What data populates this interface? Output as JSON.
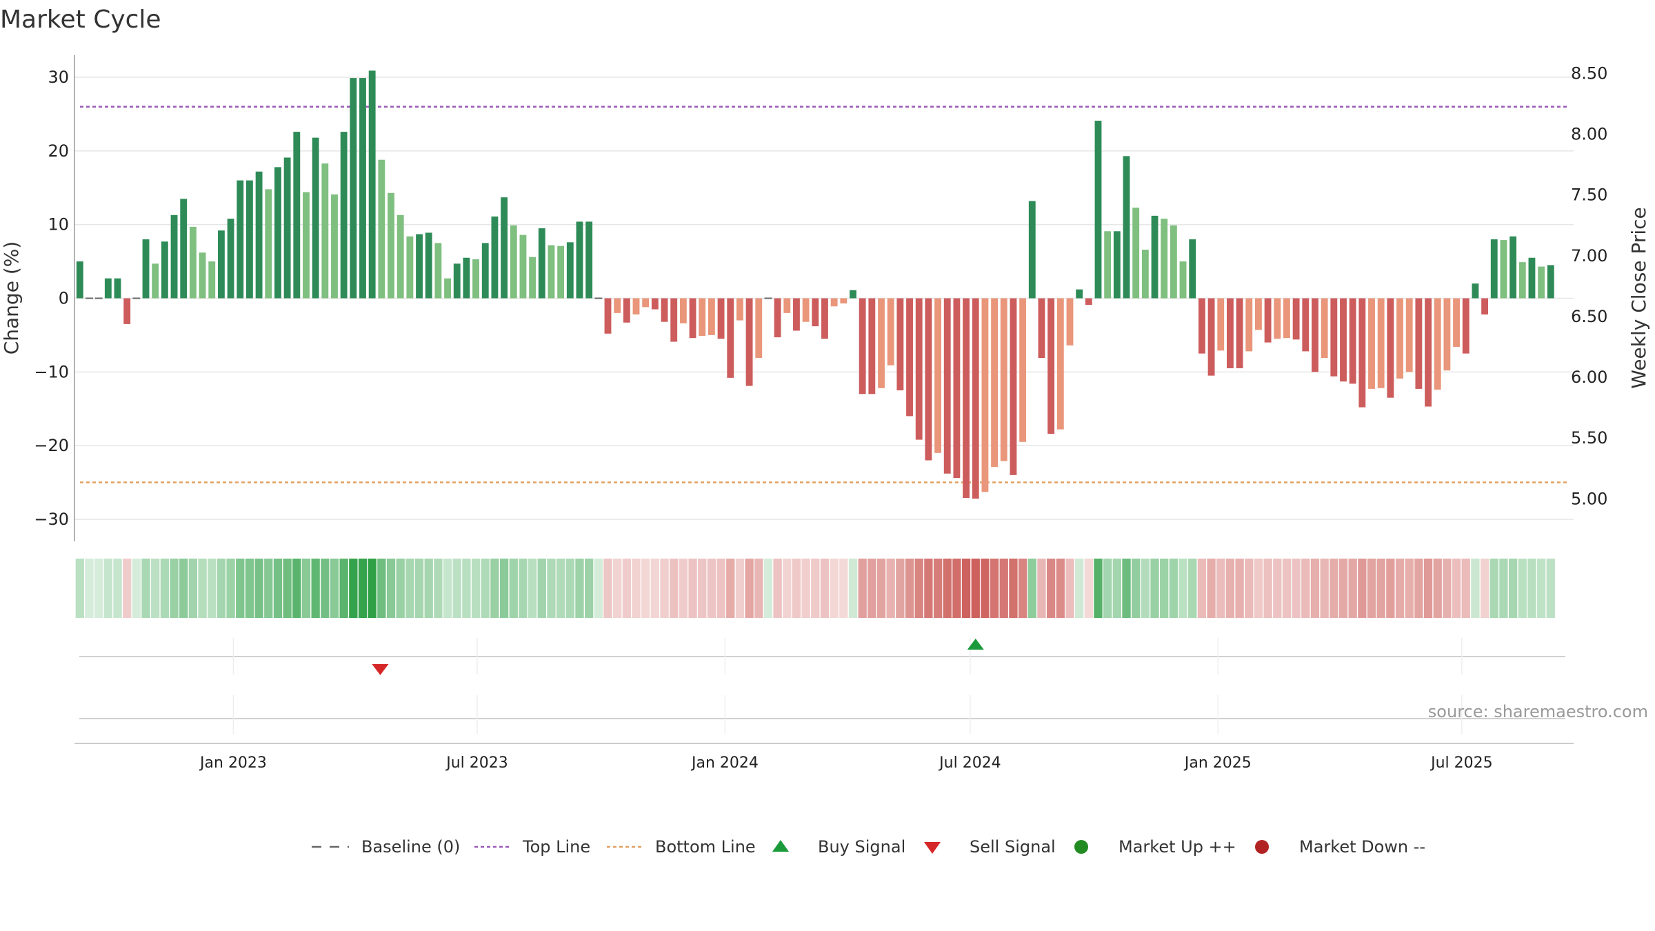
{
  "chart_data": {
    "type": "bar",
    "title": "Market Cycle",
    "ylabel": "Change (%)",
    "y2label": "Weekly Close Price",
    "ylim": [
      -33,
      33
    ],
    "y2lim": [
      4.65,
      8.65
    ],
    "yticks": [
      30,
      20,
      10,
      0,
      -10,
      -20,
      -30
    ],
    "ytick_labels": [
      "30",
      "20",
      "10",
      "0",
      "−10",
      "−20",
      "−30"
    ],
    "y2ticks": [
      8.5,
      8.0,
      7.5,
      7.0,
      6.5,
      6.0,
      5.5,
      5.0
    ],
    "y2tick_labels": [
      "8.50",
      "8.00",
      "7.50",
      "7.00",
      "6.50",
      "6.00",
      "5.50",
      "5.00"
    ],
    "x_range": [
      "2022-09-05",
      "2025-09-22"
    ],
    "xticks": [
      "2023-01-01",
      "2023-07-01",
      "2024-01-01",
      "2024-07-01",
      "2025-01-01",
      "2025-07-01"
    ],
    "xtick_labels": [
      "Jan 2023",
      "Jul 2023",
      "Jan 2024",
      "Jul 2024",
      "Jan 2025",
      "Jul 2025"
    ],
    "top_line": 26,
    "bottom_line": -25,
    "series_start": "2022-09-09",
    "series_interval": "weekly",
    "values": [
      5,
      0,
      0,
      2.7,
      2.7,
      -3.5,
      0,
      8,
      4.7,
      7.7,
      11.3,
      13.5,
      9.7,
      6.2,
      5,
      9.2,
      10.8,
      16,
      16,
      17.2,
      14.8,
      17.8,
      19.1,
      22.6,
      14.4,
      21.8,
      18.3,
      14.1,
      22.6,
      29.9,
      29.9,
      30.9,
      18.8,
      14.3,
      11.3,
      8.4,
      8.7,
      8.9,
      7.5,
      2.7,
      4.7,
      5.5,
      5.3,
      7.5,
      11.1,
      13.7,
      9.9,
      8.6,
      5.6,
      9.5,
      7.2,
      7.1,
      7.6,
      10.4,
      10.4,
      0,
      -4.8,
      -2,
      -3.3,
      -2.2,
      -1.2,
      -1.5,
      -3.2,
      -5.9,
      -3.4,
      -5.4,
      -5.1,
      -5,
      -5.5,
      -10.8,
      -3,
      -11.9,
      -8.1,
      0,
      -5.3,
      -2,
      -4.4,
      -3.2,
      -3.8,
      -5.5,
      -1.1,
      -0.7,
      1.1,
      -13,
      -13,
      -12.2,
      -9.1,
      -12.5,
      -16,
      -19.2,
      -22,
      -21,
      -23.8,
      -24.4,
      -27.1,
      -27.2,
      -26.3,
      -22.9,
      -22.1,
      -24,
      -19.5,
      13.2,
      -8.1,
      -18.4,
      -17.8,
      -6.4,
      1.2,
      -0.9,
      24.1,
      9.1,
      9.1,
      19.3,
      12.3,
      6.6,
      11.2,
      10.8,
      9.9,
      5,
      8,
      -7.5,
      -10.5,
      -7.1,
      -9.5,
      -9.5,
      -7.2,
      -4.3,
      -6,
      -5.5,
      -5.4,
      -5.6,
      -7.2,
      -10,
      -8.1,
      -10.6,
      -11.3,
      -11.6,
      -14.8,
      -12.3,
      -12.2,
      -13.5,
      -10.9,
      -10,
      -12.3,
      -14.7,
      -12.4,
      -9.8,
      -6.6,
      -7.5,
      2,
      -2.2,
      8,
      7.9,
      8.4,
      4.9,
      5.5,
      4.3,
      4.5
    ],
    "legend": [
      "Baseline (0)",
      "Top Line",
      "Bottom Line",
      "Buy Signal",
      "Sell Signal",
      "Market Up ++",
      "Market Down --"
    ],
    "signals": [
      {
        "type": "sell",
        "date": "2023-04-20"
      },
      {
        "type": "buy",
        "date": "2024-07-05"
      }
    ],
    "colors": {
      "up_strong": "#2e8b57",
      "up_weak": "#7fbf7f",
      "down_strong": "#cd5c5c",
      "down_weak": "#e9967a",
      "top_line": "#9b59b6",
      "bottom_line": "#e0a060",
      "buy": "#1a9a3a",
      "sell": "#d62728",
      "market_up": "#228b22",
      "market_down": "#b22222",
      "baseline": "#666666"
    },
    "source": "source: sharemaestro.com"
  }
}
